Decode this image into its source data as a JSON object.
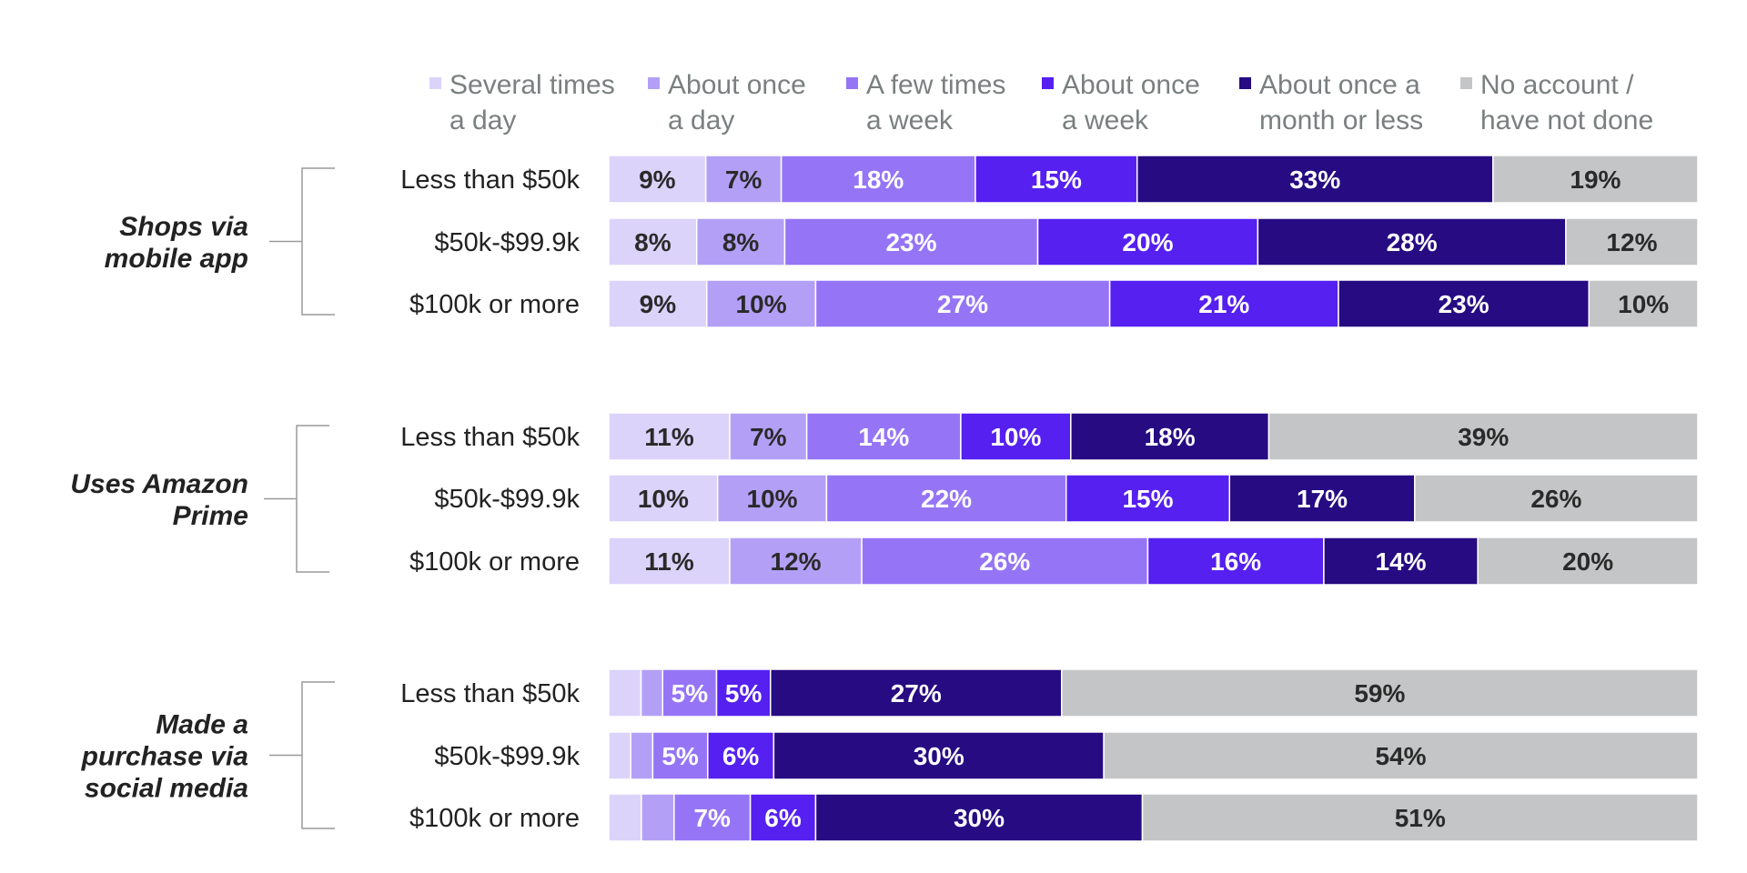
{
  "chart_data": {
    "type": "bar",
    "orientation": "horizontal",
    "stacked": true,
    "title": "",
    "xlabel": "",
    "ylabel": "",
    "xlim": [
      0,
      100
    ],
    "grid": false,
    "legend_position": "top",
    "legend": [
      {
        "lines": [
          "Several times",
          "a day"
        ],
        "color": "#dcd3fb"
      },
      {
        "lines": [
          "About once",
          "a day"
        ],
        "color": "#b3a0f6"
      },
      {
        "lines": [
          "A few times",
          "a week"
        ],
        "color": "#9575f6"
      },
      {
        "lines": [
          "About once",
          "a week"
        ],
        "color": "#5520f0"
      },
      {
        "lines": [
          "About once a",
          "month or less"
        ],
        "color": "#260b82"
      },
      {
        "lines": [
          "No account /",
          "have not done"
        ],
        "color": "#c4c5c6"
      }
    ],
    "label_colors": [
      "#2a2a2a",
      "#2a2a2a",
      "#ffffff",
      "#ffffff",
      "#ffffff",
      "#2a2a2a"
    ],
    "groups": [
      {
        "lines": [
          "Shops via",
          "mobile app"
        ],
        "rows": [
          {
            "label": "Less than $50k",
            "values": [
              9,
              7,
              18,
              15,
              33,
              19
            ],
            "labels": [
              "9%",
              "7%",
              "18%",
              "15%",
              "33%",
              "19%"
            ]
          },
          {
            "label": "$50k-$99.9k",
            "values": [
              8,
              8,
              23,
              20,
              28,
              12
            ],
            "labels": [
              "8%",
              "8%",
              "23%",
              "20%",
              "28%",
              "12%"
            ]
          },
          {
            "label": "$100k or more",
            "values": [
              9,
              10,
              27,
              21,
              23,
              10
            ],
            "labels": [
              "9%",
              "10%",
              "27%",
              "21%",
              "23%",
              "10%"
            ]
          }
        ]
      },
      {
        "lines": [
          "Uses Amazon",
          "Prime"
        ],
        "rows": [
          {
            "label": "Less than $50k",
            "values": [
              11,
              7,
              14,
              10,
              18,
              39
            ],
            "labels": [
              "11%",
              "7%",
              "14%",
              "10%",
              "18%",
              "39%"
            ]
          },
          {
            "label": "$50k-$99.9k",
            "values": [
              10,
              10,
              22,
              15,
              17,
              26
            ],
            "labels": [
              "10%",
              "10%",
              "22%",
              "15%",
              "17%",
              "26%"
            ]
          },
          {
            "label": "$100k or more",
            "values": [
              11,
              12,
              26,
              16,
              14,
              20
            ],
            "labels": [
              "11%",
              "12%",
              "26%",
              "16%",
              "14%",
              "20%"
            ]
          }
        ]
      },
      {
        "lines": [
          "Made a",
          "purchase via",
          "social media"
        ],
        "rows": [
          {
            "label": "Less than $50k",
            "values": [
              3,
              2,
              5,
              5,
              27,
              59
            ],
            "labels": [
              "",
              "",
              "5%",
              "5%",
              "27%",
              "59%"
            ]
          },
          {
            "label": "$50k-$99.9k",
            "values": [
              2,
              2,
              5,
              6,
              30,
              54
            ],
            "labels": [
              "",
              "",
              "5%",
              "6%",
              "30%",
              "54%"
            ]
          },
          {
            "label": "$100k or more",
            "values": [
              3,
              3,
              7,
              6,
              30,
              51
            ],
            "labels": [
              "",
              "",
              "7%",
              "6%",
              "30%",
              "51%"
            ]
          }
        ]
      }
    ]
  }
}
